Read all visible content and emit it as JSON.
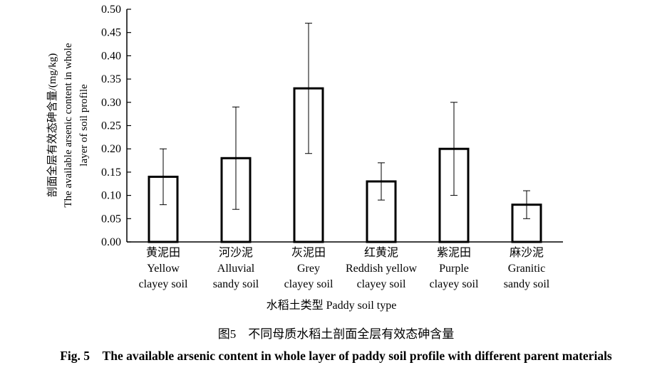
{
  "chart_data": {
    "type": "bar",
    "categories": [
      [
        "黄泥田",
        "Yellow",
        "clayey soil"
      ],
      [
        "河沙泥",
        "Alluvial",
        "sandy soil"
      ],
      [
        "灰泥田",
        "Grey",
        "clayey soil"
      ],
      [
        "红黄泥",
        "Reddish yellow",
        "clayey soil"
      ],
      [
        "紫泥田",
        "Purple",
        "clayey soil"
      ],
      [
        "麻沙泥",
        "Granitic",
        "sandy soil"
      ]
    ],
    "values": [
      0.14,
      0.18,
      0.33,
      0.13,
      0.2,
      0.08
    ],
    "error_low": [
      0.08,
      0.07,
      0.19,
      0.09,
      0.1,
      0.05
    ],
    "error_high": [
      0.2,
      0.29,
      0.47,
      0.17,
      0.3,
      0.11
    ],
    "ylim": [
      0,
      0.5
    ],
    "yticks": [
      "0.00",
      "0.05",
      "0.10",
      "0.15",
      "0.20",
      "0.25",
      "0.30",
      "0.35",
      "0.40",
      "0.45",
      "0.50"
    ],
    "xlabel": "水稻土类型 Paddy soil type",
    "ylabel": [
      "剖面全层有效态砷含量/(mg/kg)",
      "The available arsenic content in whole",
      "layer of soil profile"
    ],
    "grid": false,
    "bar_fill": "#ffffff",
    "bar_stroke": "#000000"
  },
  "caption": {
    "cn": "图5　不同母质水稻土剖面全层有效态砷含量",
    "en": "Fig. 5　The available arsenic content in whole layer of paddy soil profile with different parent materials"
  }
}
